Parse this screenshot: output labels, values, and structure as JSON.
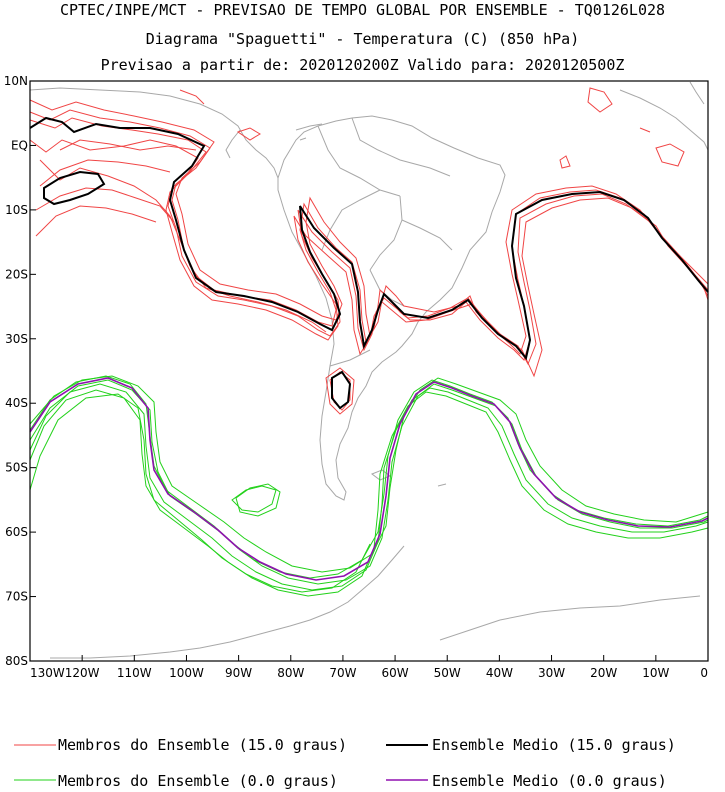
{
  "header": {
    "line1": "CPTEC/INPE/MCT - PREVISAO DE TEMPO GLOBAL POR ENSEMBLE - TQ0126L028",
    "line2": "Diagrama \"Spaguetti\" - Temperatura (C) (850 hPa)",
    "line3": "Previsao a partir de: 2020120200Z  Valido para: 2020120500Z"
  },
  "map": {
    "lon_range": [
      -130,
      0
    ],
    "lat_range": [
      -80,
      10
    ],
    "coastline_color": "#a8a8a8",
    "lat_labels": [
      "10N",
      "EQ",
      "10S",
      "20S",
      "30S",
      "40S",
      "50S",
      "60S",
      "70S",
      "80S"
    ],
    "lon_labels": [
      "130W",
      "120W",
      "110W",
      "100W",
      "90W",
      "80W",
      "70W",
      "60W",
      "50W",
      "40W",
      "30W",
      "20W",
      "10W",
      "0"
    ]
  },
  "legend": {
    "items": [
      {
        "label": "Membros do Ensemble (15.0 graus)",
        "color": "#f04545"
      },
      {
        "label": "Ensemble Medio (15.0 graus)",
        "color": "#000000"
      },
      {
        "label": "Membros do Ensemble (0.0 graus)",
        "color": "#22d11a"
      },
      {
        "label": "Ensemble Medio (0.0 graus)",
        "color": "#9010b0"
      }
    ]
  }
}
